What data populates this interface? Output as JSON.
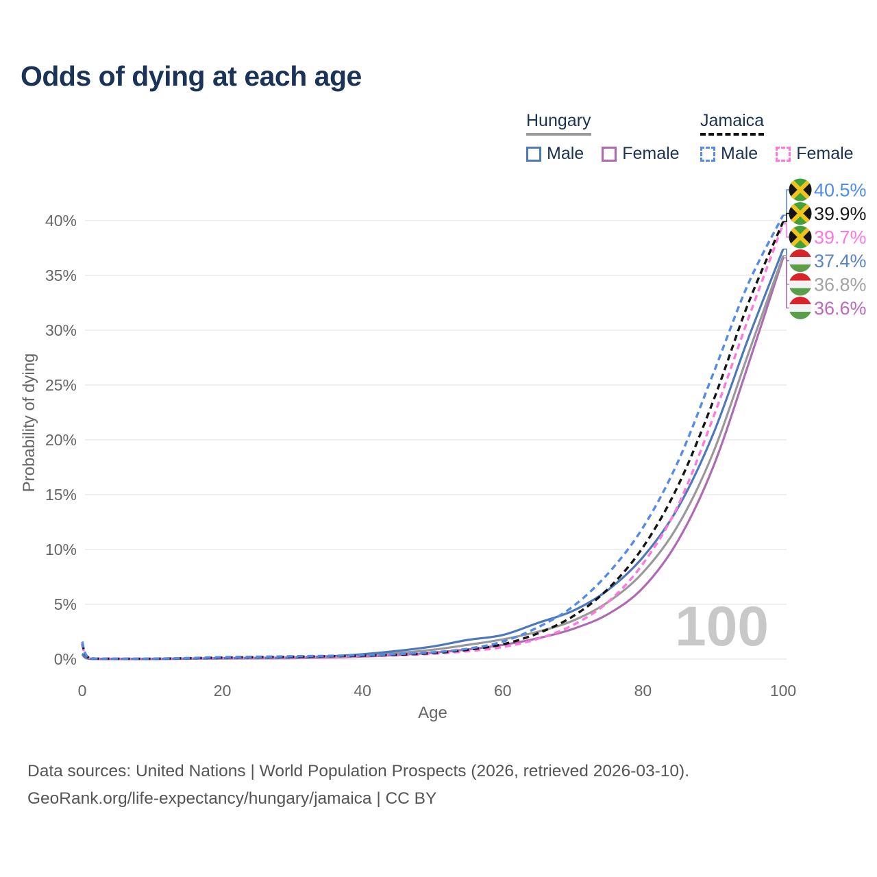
{
  "title": "Odds of dying at each age",
  "watermark_age": "100",
  "legend": {
    "groups": [
      {
        "label": "Hungary",
        "line_style": "solid",
        "line_color": "#999999",
        "items": [
          {
            "label": "Male",
            "color": "#4e79b8"
          },
          {
            "label": "Female",
            "color": "#b168b1"
          }
        ]
      },
      {
        "label": "Jamaica",
        "line_style": "dashed",
        "line_color": "#111111",
        "items": [
          {
            "label": "Male",
            "color": "#568ae8"
          },
          {
            "label": "Female",
            "color": "#ff77dd"
          }
        ]
      }
    ]
  },
  "footer": {
    "line1": "Data sources: United Nations | World Population Prospects (2026, retrieved 2026-03-10).",
    "line2": "GeoRank.org/life-expectancy/hungary/jamaica | CC BY"
  },
  "chart_data": {
    "type": "line",
    "title": "Odds of dying at each age",
    "xlabel": "Age",
    "ylabel": "Probability of dying",
    "xlim": [
      0,
      100
    ],
    "ylim_pct": [
      0,
      42
    ],
    "xticks": [
      0,
      20,
      40,
      60,
      80,
      100
    ],
    "yticks_pct": [
      0,
      5,
      10,
      15,
      20,
      25,
      30,
      35,
      40
    ],
    "grid": true,
    "legend_position": "top-right",
    "x_ages": [
      0,
      1,
      5,
      10,
      15,
      20,
      25,
      30,
      35,
      40,
      45,
      50,
      55,
      60,
      65,
      70,
      75,
      80,
      85,
      90,
      95,
      100
    ],
    "series": [
      {
        "name": "Hungary Female",
        "country": "Hungary",
        "sex": "Female",
        "color": "#ad6cb2",
        "dash": false,
        "label_color": "#bf68bd",
        "end_label": "36.6%",
        "end_value_pct": 36.6,
        "flag": "hungary-flag-icon",
        "values_pct": [
          0.4,
          0.03,
          0.01,
          0.01,
          0.03,
          0.05,
          0.07,
          0.09,
          0.14,
          0.23,
          0.38,
          0.58,
          0.88,
          1.3,
          1.9,
          2.75,
          4.1,
          6.5,
          10.8,
          17.5,
          26.8,
          36.6
        ]
      },
      {
        "name": "Hungary",
        "country": "Hungary",
        "sex": "Both",
        "color": "#999999",
        "dash": false,
        "label_color": "#a3a3a3",
        "end_label": "36.8%",
        "end_value_pct": 36.8,
        "flag": "hungary-flag-icon",
        "values_pct": [
          0.45,
          0.04,
          0.02,
          0.02,
          0.04,
          0.07,
          0.09,
          0.12,
          0.19,
          0.34,
          0.55,
          0.85,
          1.3,
          1.8,
          2.5,
          3.5,
          5.2,
          7.9,
          12.2,
          18.8,
          27.8,
          36.8
        ]
      },
      {
        "name": "Hungary Male",
        "country": "Hungary",
        "sex": "Male",
        "color": "#4e79b8",
        "dash": false,
        "label_color": "#5b84c4",
        "end_label": "37.4%",
        "end_value_pct": 37.4,
        "flag": "hungary-flag-icon",
        "values_pct": [
          0.5,
          0.04,
          0.02,
          0.02,
          0.05,
          0.09,
          0.11,
          0.15,
          0.25,
          0.45,
          0.75,
          1.15,
          1.75,
          2.2,
          3.3,
          4.4,
          6.3,
          9.3,
          13.8,
          20.5,
          29.2,
          37.4
        ]
      },
      {
        "name": "Jamaica Female",
        "country": "Jamaica",
        "sex": "Female",
        "color": "#ff77dd",
        "dash": true,
        "label_color": "#ff77dd",
        "end_label": "39.7%",
        "end_value_pct": 39.7,
        "flag": "jamaica-flag-icon",
        "values_pct": [
          1.3,
          0.1,
          0.04,
          0.04,
          0.06,
          0.1,
          0.13,
          0.17,
          0.21,
          0.27,
          0.35,
          0.48,
          0.72,
          1.1,
          1.85,
          3.1,
          5.2,
          8.7,
          14.0,
          22.0,
          31.0,
          39.7
        ]
      },
      {
        "name": "Jamaica",
        "country": "Jamaica",
        "sex": "Both",
        "color": "#151515",
        "dash": true,
        "label_color": "#1a1a1a",
        "end_label": "39.9%",
        "end_value_pct": 39.9,
        "flag": "jamaica-flag-icon",
        "values_pct": [
          1.45,
          0.11,
          0.04,
          0.04,
          0.08,
          0.14,
          0.18,
          0.22,
          0.26,
          0.31,
          0.4,
          0.55,
          0.85,
          1.35,
          2.35,
          3.9,
          6.4,
          10.2,
          15.8,
          23.5,
          32.4,
          39.9
        ]
      },
      {
        "name": "Jamaica Male",
        "country": "Jamaica",
        "sex": "Male",
        "color": "#568ae8",
        "dash": true,
        "label_color": "#4d8cf0",
        "end_label": "40.5%",
        "end_value_pct": 40.5,
        "flag": "jamaica-flag-icon",
        "values_pct": [
          1.6,
          0.12,
          0.05,
          0.05,
          0.1,
          0.18,
          0.22,
          0.26,
          0.3,
          0.36,
          0.46,
          0.62,
          0.95,
          1.6,
          2.9,
          4.8,
          7.8,
          12.0,
          18.0,
          26.0,
          34.2,
          40.5
        ]
      }
    ]
  }
}
